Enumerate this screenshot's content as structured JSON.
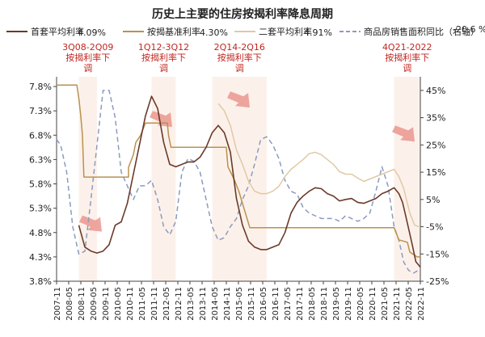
{
  "chart_data": {
    "type": "line",
    "title": "历史上主要的住房按揭利率降息周期",
    "legend": {
      "placement": "top",
      "items": [
        {
          "label": "首套平均利率",
          "value_label": "4.09%",
          "color": "#6b3a2a",
          "dash": "solid"
        },
        {
          "label": "按揭基准利率",
          "value_label": "4.30%",
          "color": "#b8924f",
          "dash": "solid"
        },
        {
          "label": "二套平均利率",
          "value_label": "4.91%",
          "color": "#e0c9a6",
          "dash": "solid"
        },
        {
          "label": "商品房销售面积同比（右轴）",
          "value_label": "-20.6 %",
          "color": "#8a9bc0",
          "dash": "dashed"
        }
      ]
    },
    "y_left": {
      "min": 3.8,
      "max": 8.0,
      "ticks": [
        "7.8%",
        "7.3%",
        "6.8%",
        "6.3%",
        "5.8%",
        "5.3%",
        "4.8%",
        "4.3%",
        "3.8%"
      ],
      "tick_values": [
        7.8,
        7.3,
        6.8,
        6.3,
        5.8,
        5.3,
        4.8,
        4.3,
        3.8
      ]
    },
    "y_right": {
      "min": -25,
      "max": 50,
      "ticks": [
        "45%",
        "35%",
        "25%",
        "15%",
        "5%",
        "-5%",
        "-15%",
        "-25%"
      ],
      "tick_values": [
        45,
        35,
        25,
        15,
        5,
        -5,
        -15,
        -25
      ]
    },
    "x_axis": {
      "min": 2007.833,
      "max": 2022.833,
      "ticks": [
        "2007-11",
        "2008-05",
        "2008-11",
        "2009-05",
        "2009-11",
        "2010-05",
        "2010-11",
        "2011-05",
        "2011-11",
        "2012-05",
        "2012-11",
        "2013-05",
        "2013-11",
        "2014-05",
        "2014-11",
        "2015-05",
        "2015-11",
        "2016-05",
        "2016-11",
        "2017-05",
        "2017-11",
        "2018-05",
        "2018-11",
        "2019-05",
        "2019-11",
        "2020-05",
        "2020-11",
        "2021-05",
        "2021-11",
        "2022-05",
        "2022-11"
      ]
    },
    "shaded_periods": [
      {
        "from": 2008.75,
        "to": 2009.5,
        "label_lines": [
          "3Q08-2Q09",
          "按揭利率下",
          "调"
        ]
      },
      {
        "from": 2011.75,
        "to": 2012.75,
        "label_lines": [
          "1Q12-3Q12",
          "按揭利率下",
          "调"
        ]
      },
      {
        "from": 2014.25,
        "to": 2016.5,
        "label_lines": [
          "2Q14-2Q16",
          "按揭利率下",
          "调"
        ]
      },
      {
        "from": 2021.75,
        "to": 2022.833,
        "label_lines": [
          "4Q21-2022",
          "按揭利率下",
          "调"
        ]
      }
    ],
    "series": [
      {
        "name": "首套平均利率",
        "axis": "left",
        "points": [
          [
            2008.75,
            4.95
          ],
          [
            2009.0,
            4.5
          ],
          [
            2009.25,
            4.42
          ],
          [
            2009.5,
            4.38
          ],
          [
            2009.75,
            4.42
          ],
          [
            2010.0,
            4.55
          ],
          [
            2010.25,
            4.95
          ],
          [
            2010.5,
            5.02
          ],
          [
            2010.75,
            5.4
          ],
          [
            2011.0,
            6.0
          ],
          [
            2011.25,
            6.6
          ],
          [
            2011.5,
            7.2
          ],
          [
            2011.75,
            7.6
          ],
          [
            2012.0,
            7.35
          ],
          [
            2012.25,
            6.65
          ],
          [
            2012.5,
            6.2
          ],
          [
            2012.75,
            6.15
          ],
          [
            2013.0,
            6.2
          ],
          [
            2013.25,
            6.25
          ],
          [
            2013.5,
            6.25
          ],
          [
            2013.75,
            6.35
          ],
          [
            2014.0,
            6.55
          ],
          [
            2014.25,
            6.85
          ],
          [
            2014.5,
            7.0
          ],
          [
            2014.75,
            6.85
          ],
          [
            2015.0,
            6.45
          ],
          [
            2015.25,
            5.5
          ],
          [
            2015.5,
            4.95
          ],
          [
            2015.75,
            4.62
          ],
          [
            2016.0,
            4.5
          ],
          [
            2016.25,
            4.45
          ],
          [
            2016.5,
            4.45
          ],
          [
            2016.75,
            4.5
          ],
          [
            2017.0,
            4.55
          ],
          [
            2017.25,
            4.8
          ],
          [
            2017.5,
            5.2
          ],
          [
            2017.75,
            5.42
          ],
          [
            2018.0,
            5.55
          ],
          [
            2018.25,
            5.65
          ],
          [
            2018.5,
            5.72
          ],
          [
            2018.75,
            5.7
          ],
          [
            2019.0,
            5.6
          ],
          [
            2019.25,
            5.55
          ],
          [
            2019.5,
            5.45
          ],
          [
            2019.75,
            5.48
          ],
          [
            2020.0,
            5.5
          ],
          [
            2020.25,
            5.42
          ],
          [
            2020.5,
            5.4
          ],
          [
            2020.75,
            5.45
          ],
          [
            2021.0,
            5.5
          ],
          [
            2021.25,
            5.6
          ],
          [
            2021.5,
            5.65
          ],
          [
            2021.75,
            5.72
          ],
          [
            2021.95,
            5.6
          ],
          [
            2022.1,
            5.42
          ],
          [
            2022.25,
            5.1
          ],
          [
            2022.5,
            4.55
          ],
          [
            2022.65,
            4.2
          ],
          [
            2022.833,
            4.09
          ]
        ]
      },
      {
        "name": "按揭基准利率",
        "axis": "left",
        "points": [
          [
            2007.833,
            7.83
          ],
          [
            2008.67,
            7.83
          ],
          [
            2008.75,
            7.56
          ],
          [
            2008.83,
            7.2
          ],
          [
            2008.9,
            6.8
          ],
          [
            2008.96,
            5.94
          ],
          [
            2010.8,
            5.94
          ],
          [
            2010.8,
            6.14
          ],
          [
            2011.0,
            6.4
          ],
          [
            2011.1,
            6.65
          ],
          [
            2011.3,
            6.8
          ],
          [
            2011.5,
            7.05
          ],
          [
            2012.4,
            7.05
          ],
          [
            2012.45,
            6.8
          ],
          [
            2012.55,
            6.55
          ],
          [
            2014.83,
            6.55
          ],
          [
            2014.9,
            6.15
          ],
          [
            2015.15,
            5.9
          ],
          [
            2015.35,
            5.65
          ],
          [
            2015.5,
            5.4
          ],
          [
            2015.65,
            5.15
          ],
          [
            2015.8,
            4.9
          ],
          [
            2021.75,
            4.9
          ],
          [
            2021.95,
            4.65
          ],
          [
            2022.3,
            4.6
          ],
          [
            2022.4,
            4.4
          ],
          [
            2022.7,
            4.3
          ],
          [
            2022.833,
            4.3
          ]
        ]
      },
      {
        "name": "二套平均利率",
        "axis": "left",
        "points": [
          [
            2014.5,
            7.45
          ],
          [
            2014.75,
            7.3
          ],
          [
            2015.0,
            7.0
          ],
          [
            2015.25,
            6.5
          ],
          [
            2015.5,
            6.2
          ],
          [
            2015.75,
            5.85
          ],
          [
            2016.0,
            5.65
          ],
          [
            2016.25,
            5.6
          ],
          [
            2016.5,
            5.6
          ],
          [
            2016.75,
            5.65
          ],
          [
            2017.0,
            5.75
          ],
          [
            2017.25,
            5.95
          ],
          [
            2017.5,
            6.1
          ],
          [
            2017.75,
            6.2
          ],
          [
            2018.0,
            6.3
          ],
          [
            2018.25,
            6.42
          ],
          [
            2018.5,
            6.45
          ],
          [
            2018.75,
            6.4
          ],
          [
            2019.0,
            6.3
          ],
          [
            2019.25,
            6.2
          ],
          [
            2019.5,
            6.05
          ],
          [
            2019.75,
            6.0
          ],
          [
            2020.0,
            6.0
          ],
          [
            2020.25,
            5.92
          ],
          [
            2020.5,
            5.85
          ],
          [
            2020.75,
            5.9
          ],
          [
            2021.0,
            5.95
          ],
          [
            2021.25,
            6.0
          ],
          [
            2021.5,
            6.05
          ],
          [
            2021.75,
            6.1
          ],
          [
            2021.95,
            5.95
          ],
          [
            2022.15,
            5.7
          ],
          [
            2022.4,
            5.2
          ],
          [
            2022.6,
            4.95
          ],
          [
            2022.833,
            4.91
          ]
        ]
      },
      {
        "name": "商品房销售面积同比（右轴）",
        "axis": "right",
        "points": [
          [
            2007.833,
            27
          ],
          [
            2008.0,
            25
          ],
          [
            2008.25,
            15
          ],
          [
            2008.5,
            -5
          ],
          [
            2008.75,
            -15
          ],
          [
            2009.0,
            -14
          ],
          [
            2009.25,
            5
          ],
          [
            2009.5,
            25
          ],
          [
            2009.75,
            45
          ],
          [
            2010.0,
            45
          ],
          [
            2010.25,
            35
          ],
          [
            2010.5,
            15
          ],
          [
            2010.75,
            10
          ],
          [
            2011.0,
            5
          ],
          [
            2011.25,
            10
          ],
          [
            2011.5,
            10
          ],
          [
            2011.75,
            12
          ],
          [
            2012.0,
            5
          ],
          [
            2012.25,
            -5
          ],
          [
            2012.5,
            -8
          ],
          [
            2012.75,
            -3
          ],
          [
            2013.0,
            15
          ],
          [
            2013.25,
            20
          ],
          [
            2013.5,
            19
          ],
          [
            2013.75,
            15
          ],
          [
            2014.0,
            5
          ],
          [
            2014.25,
            -5
          ],
          [
            2014.5,
            -10
          ],
          [
            2014.75,
            -9
          ],
          [
            2015.0,
            -5
          ],
          [
            2015.25,
            -2
          ],
          [
            2015.5,
            5
          ],
          [
            2015.75,
            10
          ],
          [
            2016.0,
            18
          ],
          [
            2016.25,
            27
          ],
          [
            2016.5,
            28
          ],
          [
            2016.75,
            25
          ],
          [
            2017.0,
            20
          ],
          [
            2017.25,
            12
          ],
          [
            2017.5,
            8
          ],
          [
            2017.75,
            7
          ],
          [
            2018.0,
            2
          ],
          [
            2018.25,
            0
          ],
          [
            2018.5,
            -1
          ],
          [
            2018.75,
            -2
          ],
          [
            2019.0,
            -2
          ],
          [
            2019.25,
            -2
          ],
          [
            2019.5,
            -3
          ],
          [
            2019.75,
            -1
          ],
          [
            2020.0,
            -2
          ],
          [
            2020.25,
            -3
          ],
          [
            2020.5,
            -2
          ],
          [
            2020.75,
            0
          ],
          [
            2021.0,
            8
          ],
          [
            2021.25,
            17
          ],
          [
            2021.5,
            10
          ],
          [
            2021.75,
            -5
          ],
          [
            2021.95,
            -10
          ],
          [
            2022.15,
            -18
          ],
          [
            2022.35,
            -21
          ],
          [
            2022.55,
            -22
          ],
          [
            2022.833,
            -20.6
          ]
        ]
      }
    ]
  }
}
